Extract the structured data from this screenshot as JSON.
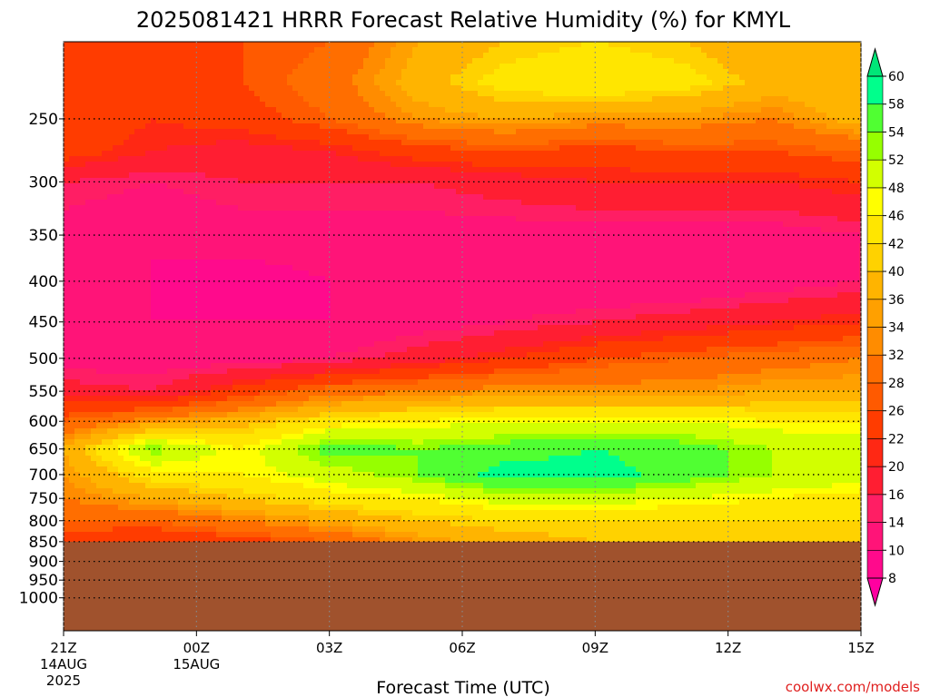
{
  "chart_data": {
    "type": "heatmap",
    "title": "2025081421 HRRR Forecast Relative Humidity (%) for KMYL",
    "xlabel": "Forecast Time (UTC)",
    "ylabel": "",
    "credit": "coolwx.com/models",
    "y_scale": "log-pressure",
    "ylim_hpa": [
      1100,
      200
    ],
    "grid": true,
    "below_ground_color": "#a0522d",
    "surface_pressure_hpa": 850,
    "x_ticks": [
      {
        "hour": 0,
        "label": "21Z",
        "sub1": "14AUG",
        "sub2": "2025"
      },
      {
        "hour": 3,
        "label": "00Z",
        "sub1": "15AUG",
        "sub2": ""
      },
      {
        "hour": 6,
        "label": "03Z",
        "sub1": "",
        "sub2": ""
      },
      {
        "hour": 9,
        "label": "06Z",
        "sub1": "",
        "sub2": ""
      },
      {
        "hour": 12,
        "label": "09Z",
        "sub1": "",
        "sub2": ""
      },
      {
        "hour": 15,
        "label": "12Z",
        "sub1": "",
        "sub2": ""
      },
      {
        "hour": 18,
        "label": "15Z",
        "sub1": "",
        "sub2": ""
      }
    ],
    "y_ticks": [
      250,
      300,
      350,
      400,
      450,
      500,
      550,
      600,
      650,
      700,
      750,
      800,
      850,
      900,
      950,
      1000
    ],
    "colorbar": {
      "levels": [
        8,
        10,
        14,
        16,
        20,
        22,
        26,
        28,
        32,
        34,
        36,
        40,
        42,
        46,
        48,
        52,
        54,
        58,
        60
      ],
      "colors": [
        "#ff00a0",
        "#ff0a8c",
        "#ff1478",
        "#ff1e64",
        "#ff1e32",
        "#ff2814",
        "#ff3c00",
        "#ff5a00",
        "#ff6e00",
        "#ff8c00",
        "#ffa000",
        "#ffb400",
        "#ffd200",
        "#ffe600",
        "#ffff00",
        "#d2ff00",
        "#96ff00",
        "#50ff32",
        "#00ff8c",
        "#00e678"
      ]
    },
    "pressure_levels_hpa": [
      200,
      225,
      250,
      275,
      300,
      350,
      400,
      450,
      500,
      550,
      600,
      650,
      700,
      750,
      800,
      850
    ],
    "forecast_hours": [
      0,
      2,
      4,
      6,
      8,
      10,
      12,
      14,
      16,
      18
    ],
    "rh_percent": [
      [
        24,
        25,
        26,
        28,
        36,
        40,
        42,
        40,
        36,
        38
      ],
      [
        26,
        24,
        26,
        30,
        38,
        44,
        46,
        44,
        38,
        40
      ],
      [
        26,
        22,
        24,
        28,
        34,
        36,
        34,
        34,
        32,
        38
      ],
      [
        24,
        20,
        18,
        20,
        24,
        26,
        24,
        26,
        26,
        28
      ],
      [
        16,
        14,
        16,
        16,
        16,
        18,
        20,
        20,
        20,
        22
      ],
      [
        12,
        10,
        12,
        12,
        12,
        12,
        12,
        12,
        12,
        14
      ],
      [
        10,
        10,
        8,
        10,
        10,
        10,
        10,
        10,
        12,
        14
      ],
      [
        10,
        10,
        10,
        10,
        12,
        14,
        16,
        18,
        20,
        22
      ],
      [
        12,
        12,
        12,
        14,
        18,
        22,
        26,
        28,
        30,
        32
      ],
      [
        18,
        16,
        24,
        30,
        32,
        34,
        34,
        34,
        36,
        36
      ],
      [
        28,
        34,
        38,
        44,
        46,
        48,
        48,
        48,
        46,
        46
      ],
      [
        36,
        54,
        46,
        56,
        54,
        56,
        58,
        56,
        52,
        50
      ],
      [
        34,
        44,
        46,
        50,
        54,
        60,
        60,
        56,
        52,
        50
      ],
      [
        32,
        36,
        40,
        44,
        46,
        50,
        50,
        48,
        46,
        44
      ],
      [
        28,
        28,
        32,
        36,
        40,
        42,
        42,
        42,
        42,
        42
      ],
      [
        24,
        22,
        24,
        28,
        34,
        38,
        40,
        40,
        40,
        40
      ]
    ]
  }
}
